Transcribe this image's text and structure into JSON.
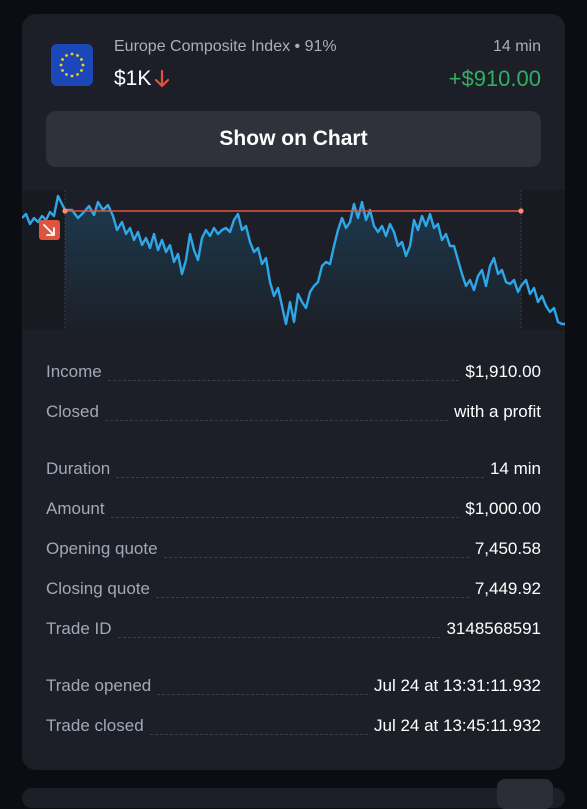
{
  "trade": {
    "asset_name": "Europe Composite Index • 91%",
    "amount": "$1K",
    "duration_top": "14 min",
    "profit": "+$910.00",
    "show_chart_label": "Show on Chart"
  },
  "colors": {
    "profit_green": "#31b062",
    "loss_red": "#e0533d",
    "line_blue": "#2ea7e8",
    "card_bg": "#1c1f27",
    "page_bg": "#0b0d12"
  },
  "icons": {
    "flag": "eu-flag-icon",
    "amount_arrow": "arrow-down-icon",
    "chart_marker": "arrow-down-right-icon"
  },
  "details": [
    {
      "label": "Income",
      "value": "$1,910.00"
    },
    {
      "label": "Closed",
      "value": "with a profit"
    },
    {
      "label": "Duration",
      "value": "14 min"
    },
    {
      "label": "Amount",
      "value": "$1,000.00"
    },
    {
      "label": "Opening quote",
      "value": "7,450.58"
    },
    {
      "label": "Closing quote",
      "value": "7,449.92"
    },
    {
      "label": "Trade ID",
      "value": "3148568591"
    },
    {
      "label": "Trade opened",
      "value": "Jul 24 at 13:31:11.932"
    },
    {
      "label": "Trade closed",
      "value": "Jul 24 at 13:45:11.932"
    }
  ]
}
